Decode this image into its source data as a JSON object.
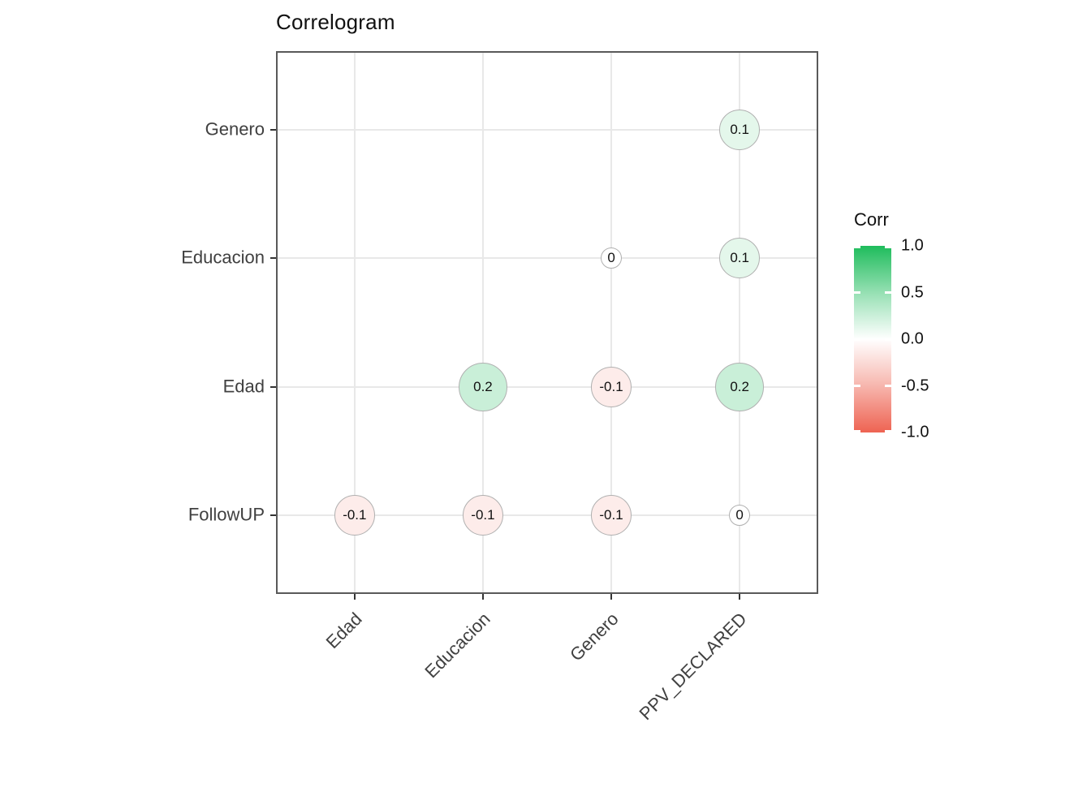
{
  "page": {
    "title": "Correlogram"
  },
  "chart_data": {
    "type": "heatmap",
    "subtype": "correlogram-bubble",
    "title": "Correlogram",
    "x_categories": [
      "Edad",
      "Educacion",
      "Genero",
      "PPV_DECLARED"
    ],
    "y_categories_top_to_bottom": [
      "Genero",
      "Educacion",
      "Edad",
      "FollowUP"
    ],
    "points": [
      {
        "x": "PPV_DECLARED",
        "y": "Genero",
        "value": 0.1,
        "label": "0.1"
      },
      {
        "x": "Genero",
        "y": "Educacion",
        "value": 0,
        "label": "0"
      },
      {
        "x": "PPV_DECLARED",
        "y": "Educacion",
        "value": 0.1,
        "label": "0.1"
      },
      {
        "x": "Educacion",
        "y": "Edad",
        "value": 0.2,
        "label": "0.2"
      },
      {
        "x": "Genero",
        "y": "Edad",
        "value": -0.1,
        "label": "-0.1"
      },
      {
        "x": "PPV_DECLARED",
        "y": "Edad",
        "value": 0.2,
        "label": "0.2"
      },
      {
        "x": "Edad",
        "y": "FollowUP",
        "value": -0.1,
        "label": "-0.1"
      },
      {
        "x": "Educacion",
        "y": "FollowUP",
        "value": -0.1,
        "label": "-0.1"
      },
      {
        "x": "Genero",
        "y": "FollowUP",
        "value": -0.1,
        "label": "-0.1"
      },
      {
        "x": "PPV_DECLARED",
        "y": "FollowUP",
        "value": 0,
        "label": "0"
      }
    ],
    "legend": {
      "title": "Corr",
      "tick_labels": [
        "1.0",
        "0.5",
        "0.0",
        "-0.5",
        "-1.0"
      ],
      "min": -1,
      "max": 1,
      "position": "right"
    },
    "grid": true,
    "colors": {
      "high": "#1FBC5C",
      "mid": "#FFFFFF",
      "low": "#EE6352",
      "circle_border": "#B0B0B0",
      "gridline": "#E8E8E8",
      "panel_border": "#595959",
      "axis_text": "#404040",
      "tick": "#333333"
    }
  }
}
